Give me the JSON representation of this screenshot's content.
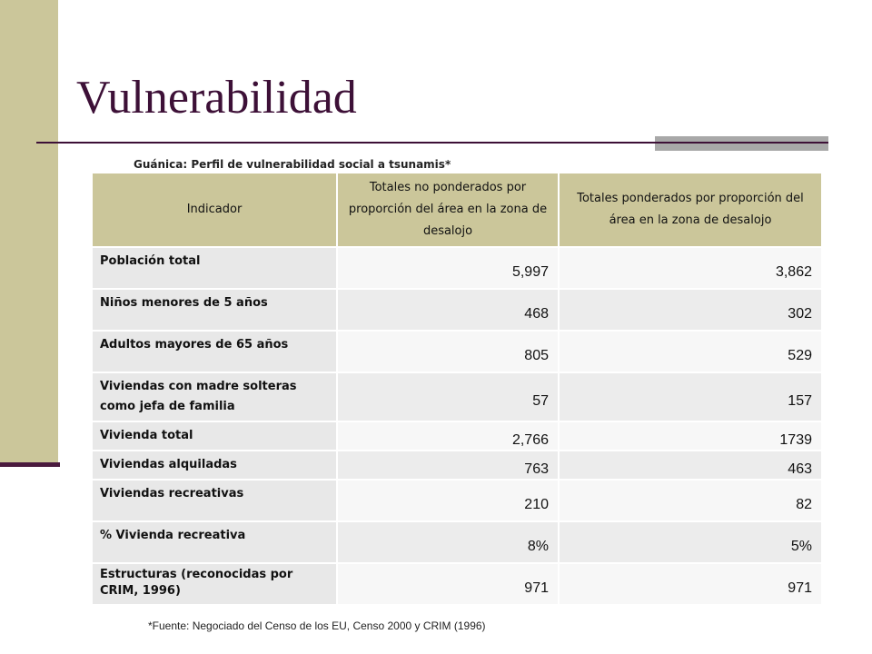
{
  "title": "Vulnerabilidad",
  "caption": "Guánica: Perfil de vulnerabilidad social a tsunamis*",
  "table": {
    "headers": [
      "Indicador",
      "Totales no ponderados por proporción del área en la zona de desalojo",
      "Totales ponderados por proporción del área en la zona de desalojo"
    ],
    "rows": [
      {
        "indicator": "Población total",
        "unweighted": "5,997",
        "weighted": "3,862"
      },
      {
        "indicator": "Niños menores de 5 años",
        "unweighted": "468",
        "weighted": "302"
      },
      {
        "indicator": "Adultos mayores de 65 años",
        "unweighted": "805",
        "weighted": "529"
      },
      {
        "indicator": "Viviendas con madre solteras como jefa de familia",
        "unweighted": "57",
        "weighted": "157"
      },
      {
        "indicator": "Vivienda total",
        "unweighted": "2,766",
        "weighted": "1739"
      },
      {
        "indicator": "Viviendas alquiladas",
        "unweighted": "763",
        "weighted": "463"
      },
      {
        "indicator": "Viviendas recreativas",
        "unweighted": "210",
        "weighted": "82"
      },
      {
        "indicator": "% Vivienda recreativa",
        "unweighted": "8%",
        "weighted": "5%"
      },
      {
        "indicator": "Estructuras (reconocidas por CRIM, 1996)",
        "unweighted": "971",
        "weighted": "971"
      }
    ]
  },
  "footnote": "*Fuente: Negociado del Censo de los EU, Censo 2000 y CRIM (1996)",
  "colors": {
    "accent_band": "#cbc69a",
    "title_color": "#3d1037",
    "rule_color": "#3d1037",
    "accent_gray": "#a8a8a8"
  }
}
